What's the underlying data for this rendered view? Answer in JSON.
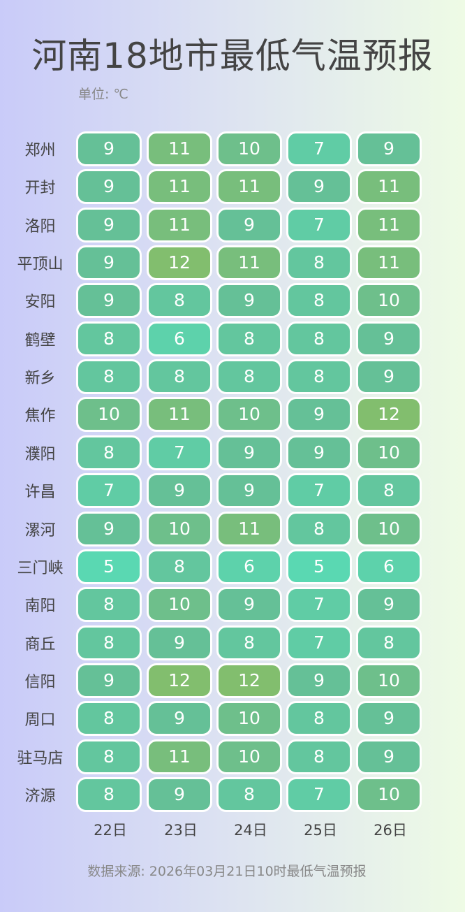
{
  "chart_data": {
    "type": "heatmap",
    "title": "河南18地市最低气温预报",
    "unit_label": "单位: ℃",
    "rows": [
      "郑州",
      "开封",
      "洛阳",
      "平顶山",
      "安阳",
      "鹤壁",
      "新乡",
      "焦作",
      "濮阳",
      "许昌",
      "漯河",
      "三门峡",
      "南阳",
      "商丘",
      "信阳",
      "周口",
      "驻马店",
      "济源"
    ],
    "columns": [
      "22日",
      "23日",
      "24日",
      "25日",
      "26日"
    ],
    "values": [
      [
        9,
        11,
        10,
        7,
        9
      ],
      [
        9,
        11,
        11,
        9,
        11
      ],
      [
        9,
        11,
        9,
        7,
        11
      ],
      [
        9,
        12,
        11,
        8,
        11
      ],
      [
        9,
        8,
        9,
        8,
        10
      ],
      [
        8,
        6,
        8,
        8,
        9
      ],
      [
        8,
        8,
        8,
        8,
        9
      ],
      [
        10,
        11,
        10,
        9,
        12
      ],
      [
        8,
        7,
        9,
        9,
        10
      ],
      [
        7,
        9,
        9,
        7,
        8
      ],
      [
        9,
        10,
        11,
        8,
        10
      ],
      [
        5,
        8,
        6,
        5,
        6
      ],
      [
        8,
        10,
        9,
        7,
        9
      ],
      [
        8,
        9,
        8,
        7,
        8
      ],
      [
        9,
        12,
        12,
        9,
        10
      ],
      [
        8,
        9,
        10,
        8,
        9
      ],
      [
        8,
        11,
        10,
        8,
        9
      ],
      [
        8,
        9,
        8,
        7,
        10
      ]
    ],
    "color_scale": {
      "min": 5,
      "max": 12,
      "low_color": "#5ad8b2",
      "mid_color": "#66bf96",
      "high_color": "#82be6e"
    },
    "source": "数据来源: 2026年03月21日10时最低气温预报"
  }
}
